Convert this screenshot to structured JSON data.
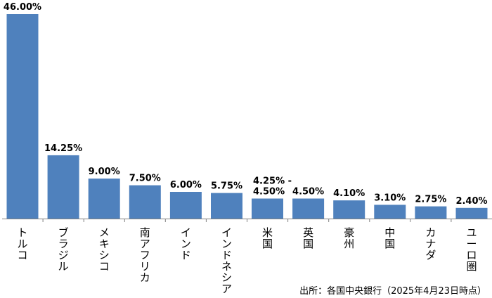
{
  "chart_data": {
    "type": "bar",
    "categories": [
      "トルコ",
      "ブラジル",
      "メキシコ",
      "南アフリカ",
      "インド",
      "インドネシア",
      "米国",
      "英国",
      "豪州",
      "中国",
      "カナダ",
      "ユーロ圏"
    ],
    "values": [
      46.0,
      14.25,
      9.0,
      7.5,
      6.0,
      5.75,
      4.5,
      4.5,
      4.1,
      3.1,
      2.75,
      2.4
    ],
    "range_low": [
      null,
      null,
      null,
      null,
      null,
      null,
      4.25,
      null,
      null,
      null,
      null,
      null
    ],
    "labels": [
      "46.00%",
      "14.25%",
      "9.00%",
      "7.50%",
      "6.00%",
      "5.75%",
      "4.25% -\n4.50%",
      "4.50%",
      "4.10%",
      "3.10%",
      "2.75%",
      "2.40%"
    ],
    "ylim": [
      0,
      46
    ],
    "bar_color": "#4f81bd",
    "axis_color": "#808080",
    "source_note": "出所：各国中央銀行（2025年4月23日時点）"
  }
}
